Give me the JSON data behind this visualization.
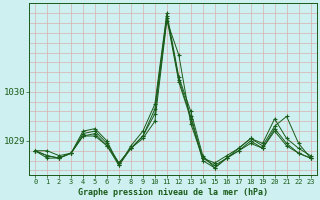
{
  "title": "Graphe pression niveau de la mer (hPa)",
  "bg_color": "#cff0f0",
  "grid_color": "#d8b0b0",
  "line_color": "#1a5c1a",
  "x_labels": [
    "0",
    "1",
    "2",
    "3",
    "4",
    "5",
    "6",
    "7",
    "8",
    "9",
    "10",
    "11",
    "12",
    "13",
    "14",
    "15",
    "16",
    "17",
    "18",
    "19",
    "20",
    "21",
    "22",
    "23"
  ],
  "ylim": [
    1028.3,
    1031.8
  ],
  "yticks": [
    1029,
    1030
  ],
  "figsize": [
    3.2,
    2.0
  ],
  "dpi": 100,
  "series": [
    [
      1028.8,
      1028.8,
      1028.7,
      1028.75,
      1029.1,
      1029.15,
      1028.9,
      1028.55,
      1028.85,
      1029.05,
      1029.4,
      1031.45,
      1030.75,
      1029.35,
      1028.65,
      1028.55,
      1028.7,
      1028.85,
      1029.05,
      1028.95,
      1029.45,
      1029.05,
      1028.85,
      1028.7
    ],
    [
      1028.8,
      1028.7,
      1028.65,
      1028.75,
      1029.15,
      1029.2,
      1028.95,
      1028.55,
      1028.85,
      1029.1,
      1029.65,
      1031.55,
      1030.25,
      1029.5,
      1028.65,
      1028.5,
      1028.65,
      1028.8,
      1029.0,
      1028.85,
      1029.25,
      1028.95,
      1028.75,
      1028.65
    ],
    [
      1028.8,
      1028.65,
      1028.65,
      1028.75,
      1029.2,
      1029.25,
      1029.0,
      1028.5,
      1028.9,
      1029.2,
      1029.75,
      1031.6,
      1030.3,
      1029.6,
      1028.7,
      1028.45,
      1028.65,
      1028.85,
      1029.05,
      1028.9,
      1029.3,
      1029.5,
      1028.95,
      1028.65
    ],
    [
      1028.8,
      1028.7,
      1028.65,
      1028.75,
      1029.1,
      1029.1,
      1028.9,
      1028.5,
      1028.85,
      1029.1,
      1029.55,
      1031.5,
      1030.2,
      1029.45,
      1028.6,
      1028.45,
      1028.65,
      1028.8,
      1028.95,
      1028.85,
      1029.2,
      1028.9,
      1028.75,
      1028.65
    ]
  ]
}
